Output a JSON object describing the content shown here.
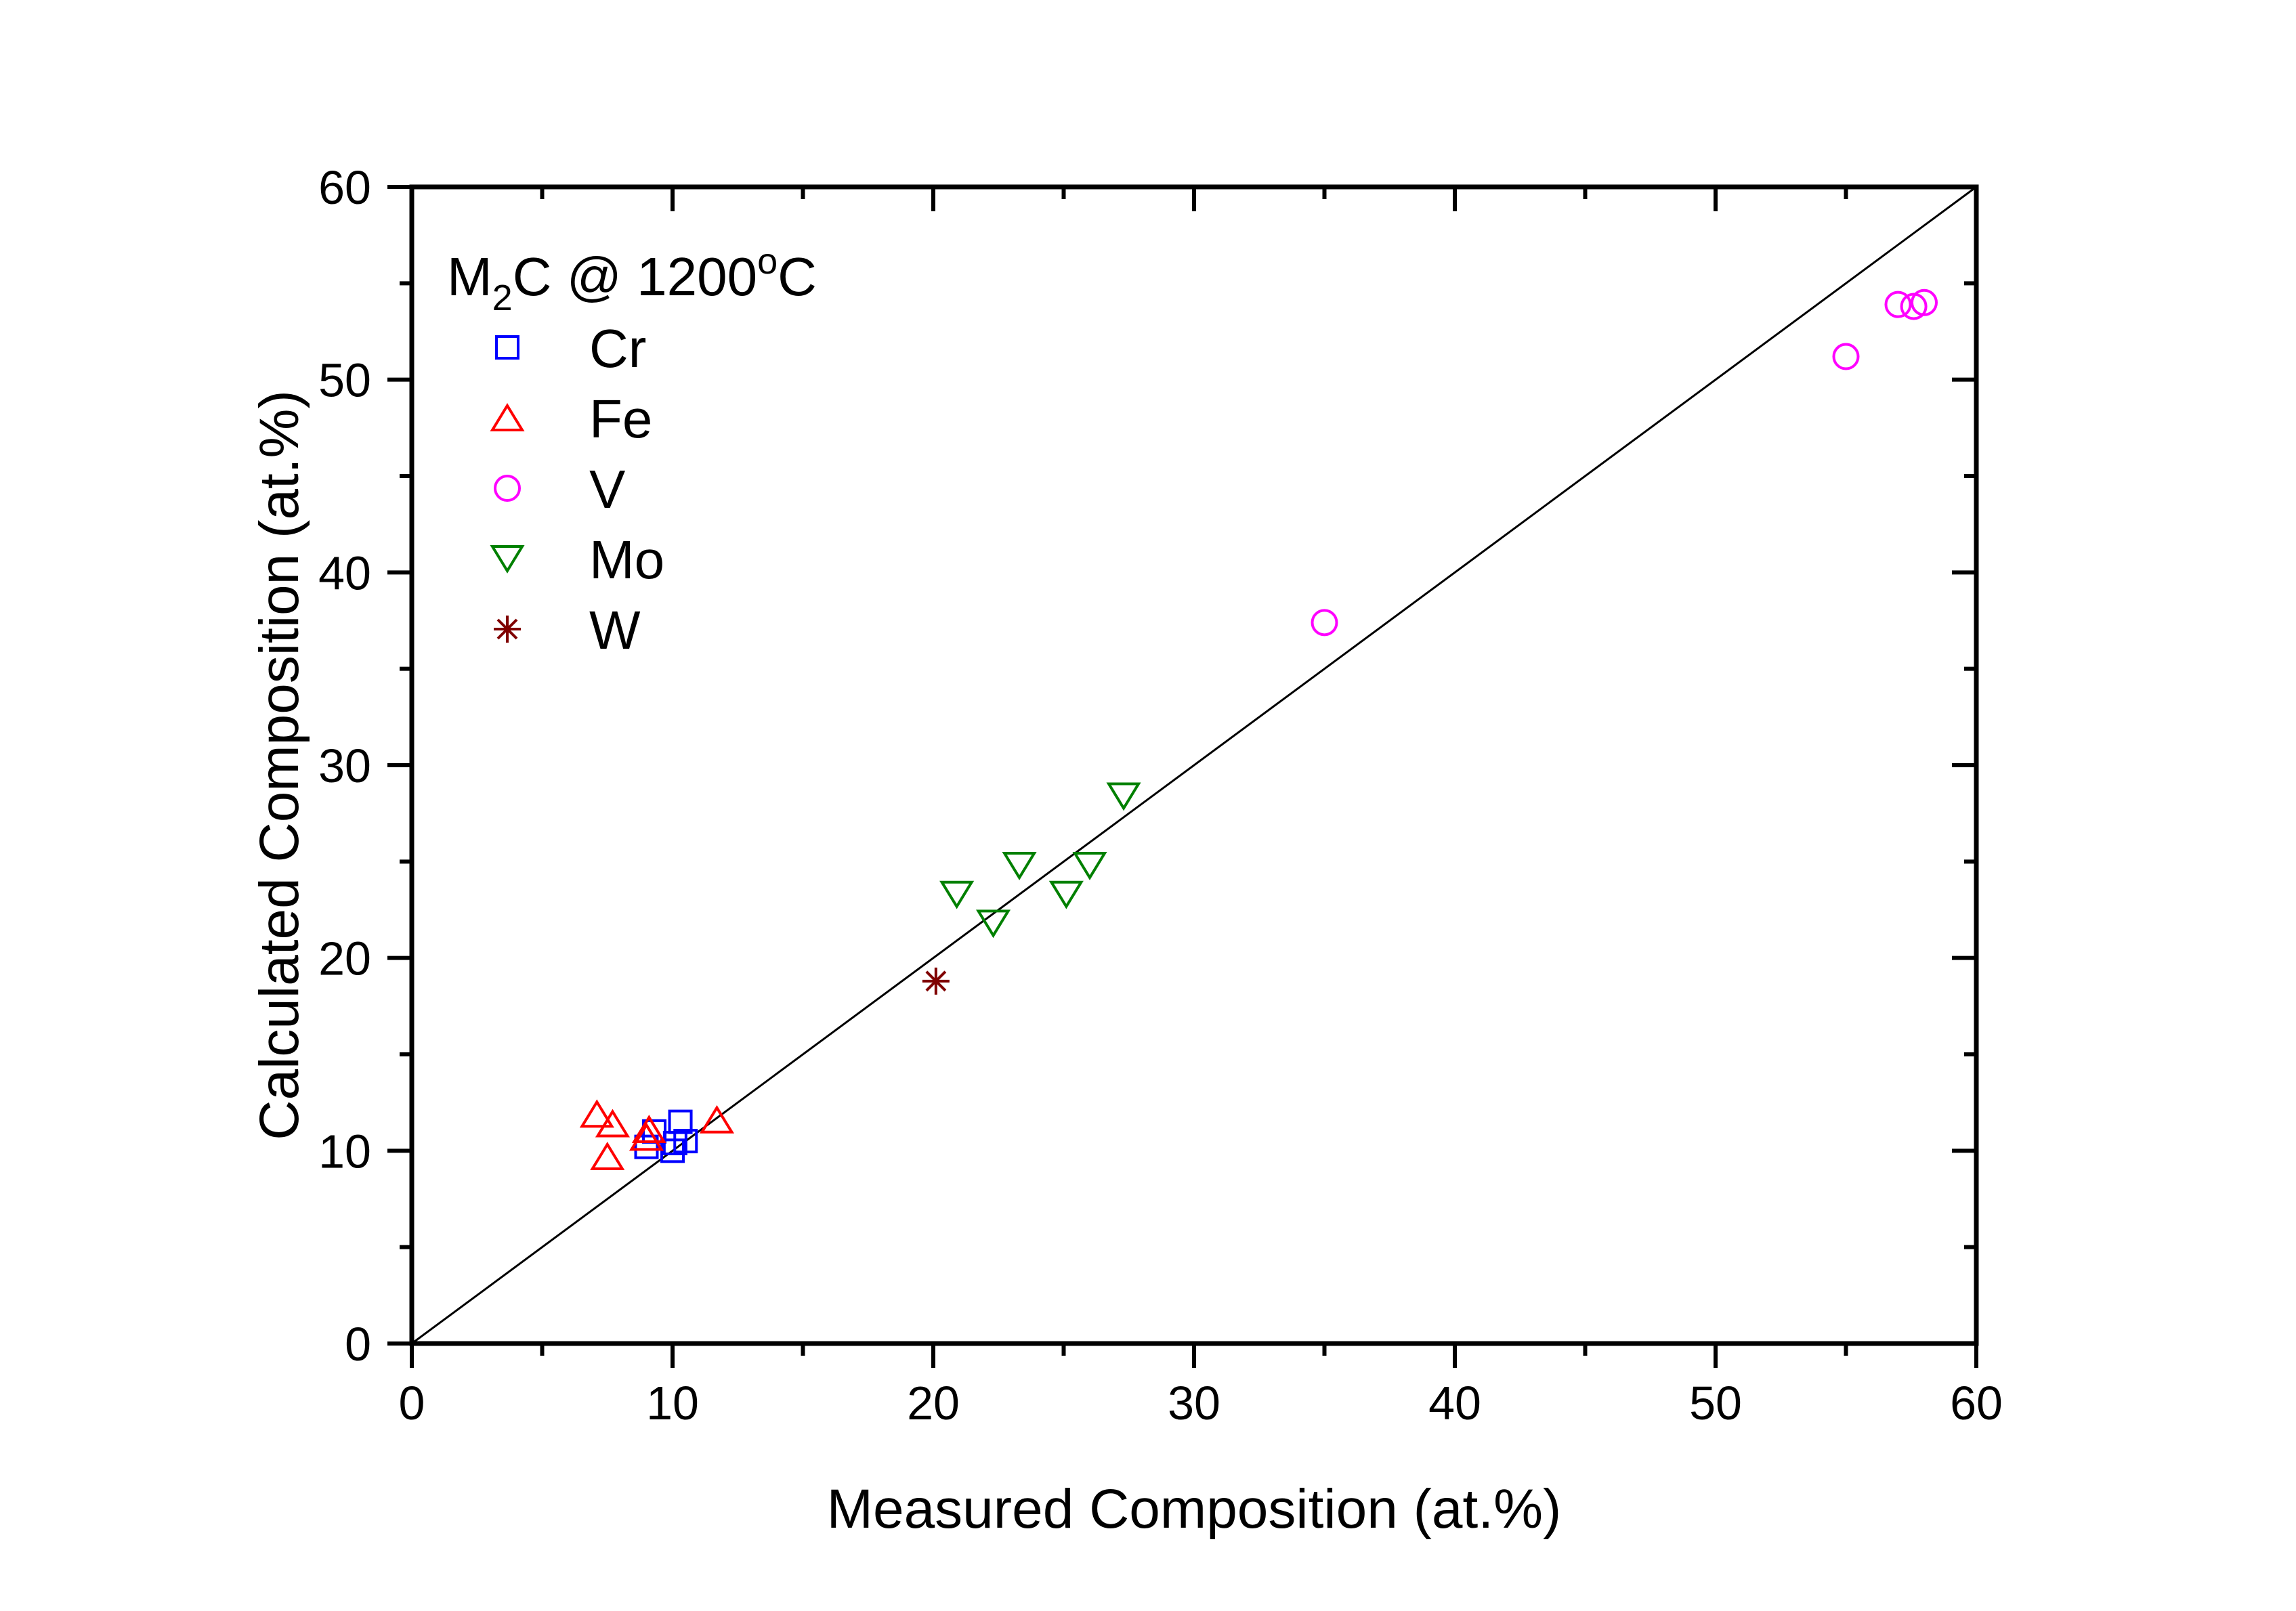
{
  "chart_data": {
    "type": "scatter",
    "title": "",
    "xlabel": "Measured Composition (at.%)",
    "ylabel": "Calculated Composition (at.%)",
    "xlim": [
      0,
      60
    ],
    "ylim": [
      0,
      60
    ],
    "xticks": [
      0,
      10,
      20,
      30,
      40,
      50,
      60
    ],
    "yticks": [
      0,
      10,
      20,
      30,
      40,
      50,
      60
    ],
    "xtick_labels": [
      "0",
      "10",
      "20",
      "30",
      "40",
      "50",
      "60"
    ],
    "ytick_labels": [
      "0",
      "10",
      "20",
      "30",
      "40",
      "50",
      "60"
    ],
    "minor_tick_step": 5,
    "grid": false,
    "reference_line": {
      "type": "y=x",
      "from": [
        0,
        0
      ],
      "to": [
        60,
        60
      ],
      "color": "#000000"
    },
    "legend": {
      "placement": "top-left",
      "title_main": "M",
      "title_sub": "2",
      "title_mid": "C @ 1200",
      "title_sup": "o",
      "title_end": "C"
    },
    "series": [
      {
        "name": "Cr",
        "marker": "square",
        "color": "#0000FF",
        "points": [
          [
            9.3,
            11.0
          ],
          [
            9.0,
            10.2
          ],
          [
            10.3,
            11.5
          ],
          [
            10.1,
            10.4
          ],
          [
            10.5,
            10.5
          ],
          [
            10.0,
            10.0
          ]
        ]
      },
      {
        "name": "Fe",
        "marker": "triangle-up",
        "color": "#FF0000",
        "points": [
          [
            7.1,
            11.9
          ],
          [
            7.7,
            11.4
          ],
          [
            7.5,
            9.7
          ],
          [
            9.1,
            11.1
          ],
          [
            9.0,
            10.7
          ],
          [
            11.7,
            11.6
          ]
        ]
      },
      {
        "name": "V",
        "marker": "circle",
        "color": "#FF00FF",
        "points": [
          [
            35.0,
            37.4
          ],
          [
            55.0,
            51.2
          ],
          [
            57.0,
            53.9
          ],
          [
            57.6,
            53.8
          ],
          [
            58.0,
            54.0
          ]
        ]
      },
      {
        "name": "Mo",
        "marker": "triangle-down",
        "color": "#008000",
        "points": [
          [
            20.9,
            23.3
          ],
          [
            22.3,
            21.8
          ],
          [
            23.3,
            24.8
          ],
          [
            25.1,
            23.3
          ],
          [
            26.0,
            24.8
          ],
          [
            27.3,
            28.4
          ]
        ]
      },
      {
        "name": "W",
        "marker": "star",
        "color": "#800000",
        "points": [
          [
            20.1,
            18.8
          ]
        ]
      }
    ]
  }
}
